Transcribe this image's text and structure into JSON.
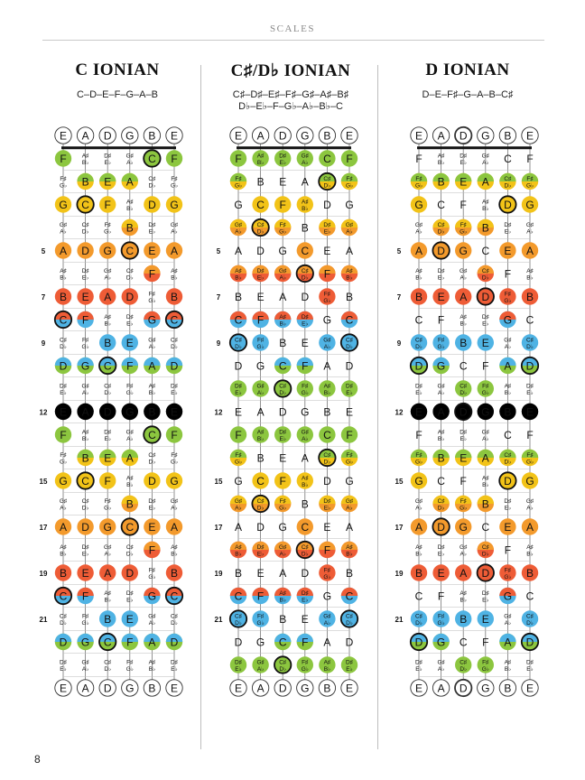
{
  "header": {
    "title": "SCALES"
  },
  "page_number": "8",
  "strings": [
    "E",
    "A",
    "D",
    "G",
    "B",
    "E"
  ],
  "fret_numbers": {
    "5": "5",
    "7": "7",
    "9": "9",
    "12": "12",
    "15": "15",
    "17": "17",
    "19": "19",
    "21": "21"
  },
  "colors": {
    "green": "#8cc63f",
    "yellow": "#f2c318",
    "orange": "#f39a2c",
    "red": "#ee5c36",
    "blue": "#4fb3e4"
  },
  "scales": [
    {
      "title": "C IONIAN",
      "notes_line1": "C–D–E–F–G–A–B",
      "notes_line2": ""
    },
    {
      "title": "C♯/D♭ IONIAN",
      "notes_line1": "C♯–D♯–E♯–F♯–G♯–A♯–B♯",
      "notes_line2": "D♭–E♭–F–G♭–A♭–B♭–C"
    },
    {
      "title": "D IONIAN",
      "notes_line1": "D–E–F♯–G–A–B–C♯",
      "notes_line2": ""
    }
  ]
}
